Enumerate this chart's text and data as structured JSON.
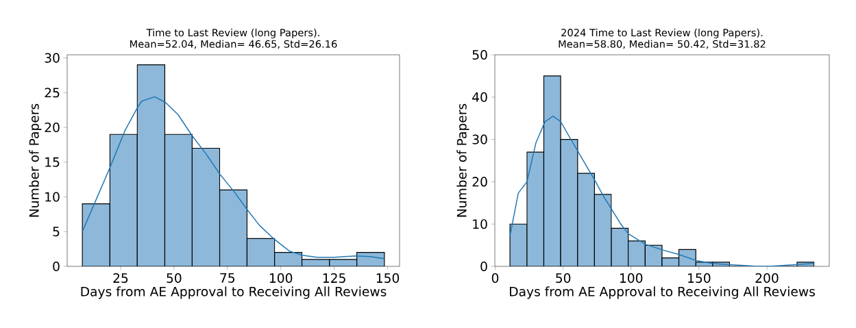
{
  "chart_data": [
    {
      "type": "histogram",
      "title": "Time to Last Review (long Papers).",
      "subtitle": "Mean=52.04, Median= 46.65, Std=26.16",
      "xlabel": "Days from AE Approval to Receiving All Reviews",
      "ylabel": "Number of Papers",
      "bins": [
        7.1,
        20.0,
        32.8,
        45.7,
        58.5,
        71.4,
        84.2,
        97.1,
        109.9,
        122.8,
        135.6,
        148.5
      ],
      "values": [
        9,
        19,
        29,
        19,
        17,
        11,
        4,
        2,
        1,
        1,
        2
      ],
      "color": "#8db8da",
      "series": [
        {
          "type": "line",
          "color": "#1f77b4",
          "x": [
            7.1,
            13,
            20,
            27,
            32.8,
            35,
            41,
            46,
            52,
            58.5,
            65,
            71.4,
            78,
            84.2,
            90,
            97,
            104,
            110,
            117,
            125,
            135,
            142,
            148.5
          ],
          "values": [
            5.0,
            9.2,
            14.2,
            19.5,
            22.8,
            23.8,
            24.4,
            23.6,
            21.8,
            18.8,
            16.2,
            13.3,
            10.8,
            8.2,
            5.9,
            3.9,
            2.2,
            1.6,
            1.3,
            1.3,
            1.5,
            1.4,
            1.1
          ]
        }
      ],
      "xlim": [
        0.0,
        155.6
      ],
      "ylim": [
        0,
        30.45
      ],
      "xticks": [
        25,
        50,
        75,
        100,
        125,
        150
      ],
      "yticks": [
        0,
        5,
        10,
        15,
        20,
        25,
        30
      ]
    },
    {
      "type": "histogram",
      "title": "2024 Time to Last Review (long Papers).",
      "subtitle": "Mean=58.80, Median= 50.42, Std=31.82",
      "xlabel": "Days from AE Approval to Receiving All Reviews",
      "ylabel": "Number of Papers",
      "bins": [
        10.9,
        23.4,
        35.8,
        48.2,
        60.7,
        73.1,
        85.5,
        97.9,
        110.4,
        122.8,
        135.2,
        147.7,
        160.1,
        172.5,
        184.9,
        197.4,
        209.8,
        222.2,
        234.7
      ],
      "values": [
        10,
        27,
        45,
        30,
        22,
        17,
        9,
        6,
        5,
        2,
        4,
        1,
        1,
        0,
        0,
        0,
        0,
        1
      ],
      "color": "#8db8da",
      "series": [
        {
          "type": "line",
          "color": "#1f77b4",
          "x": [
            10.9,
            17,
            23.4,
            30,
            36.7,
            42.6,
            48.2,
            55.2,
            60.7,
            67,
            73.1,
            79.5,
            85.7,
            92,
            98,
            110.6,
            123,
            135.4,
            147.8,
            160.3,
            172.7,
            190,
            203,
            215,
            234.7
          ],
          "values": [
            7.2,
            17.3,
            20.0,
            29.2,
            34.2,
            35.5,
            34.2,
            30.3,
            27.3,
            23.8,
            20.5,
            16.7,
            13.5,
            10.2,
            7.7,
            5.2,
            3.9,
            2.8,
            1.4,
            0.65,
            0.4,
            0.1,
            0.05,
            0.3,
            0.7
          ]
        }
      ],
      "xlim": [
        -0.25,
        245.9
      ],
      "ylim": [
        0,
        50
      ],
      "xticks": [
        0,
        50,
        100,
        150,
        200
      ],
      "yticks": [
        0,
        10,
        20,
        30,
        40,
        50
      ]
    }
  ]
}
